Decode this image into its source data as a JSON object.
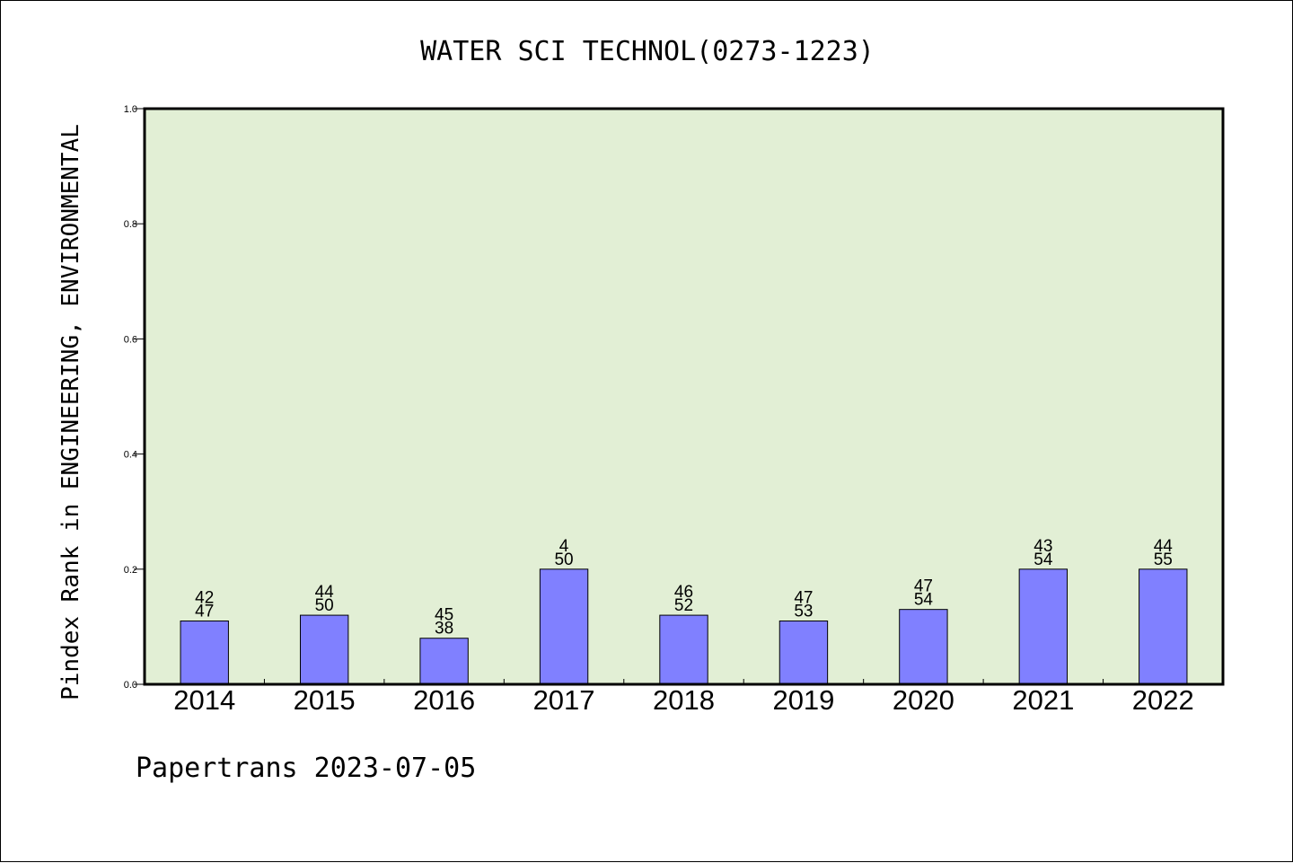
{
  "chart_data": {
    "type": "bar",
    "title": "WATER SCI TECHNOL(0273-1223)",
    "ylabel": "Pindex Rank in ENGINEERING, ENVIRONMENTAL",
    "xlabel": "",
    "categories": [
      "2014",
      "2015",
      "2016",
      "2017",
      "2018",
      "2019",
      "2020",
      "2021",
      "2022"
    ],
    "values": [
      0.11,
      0.12,
      0.08,
      0.2,
      0.12,
      0.11,
      0.13,
      0.2,
      0.2
    ],
    "labels_top": [
      "42",
      "44",
      "45",
      "4",
      "46",
      "47",
      "47",
      "43",
      "44"
    ],
    "labels_bottom": [
      "47",
      "50",
      "38",
      "50",
      "52",
      "53",
      "54",
      "54",
      "55"
    ],
    "ylim": [
      0,
      1.0
    ],
    "yticks": [
      "0.0",
      "0.2",
      "0.4",
      "0.6",
      "0.8",
      "1.0"
    ],
    "grid": false,
    "colors": {
      "plot_background": "#e2efd5",
      "bar_fill": "#8080ff",
      "bar_stroke": "#000000"
    }
  },
  "footer": "Papertrans 2023-07-05"
}
